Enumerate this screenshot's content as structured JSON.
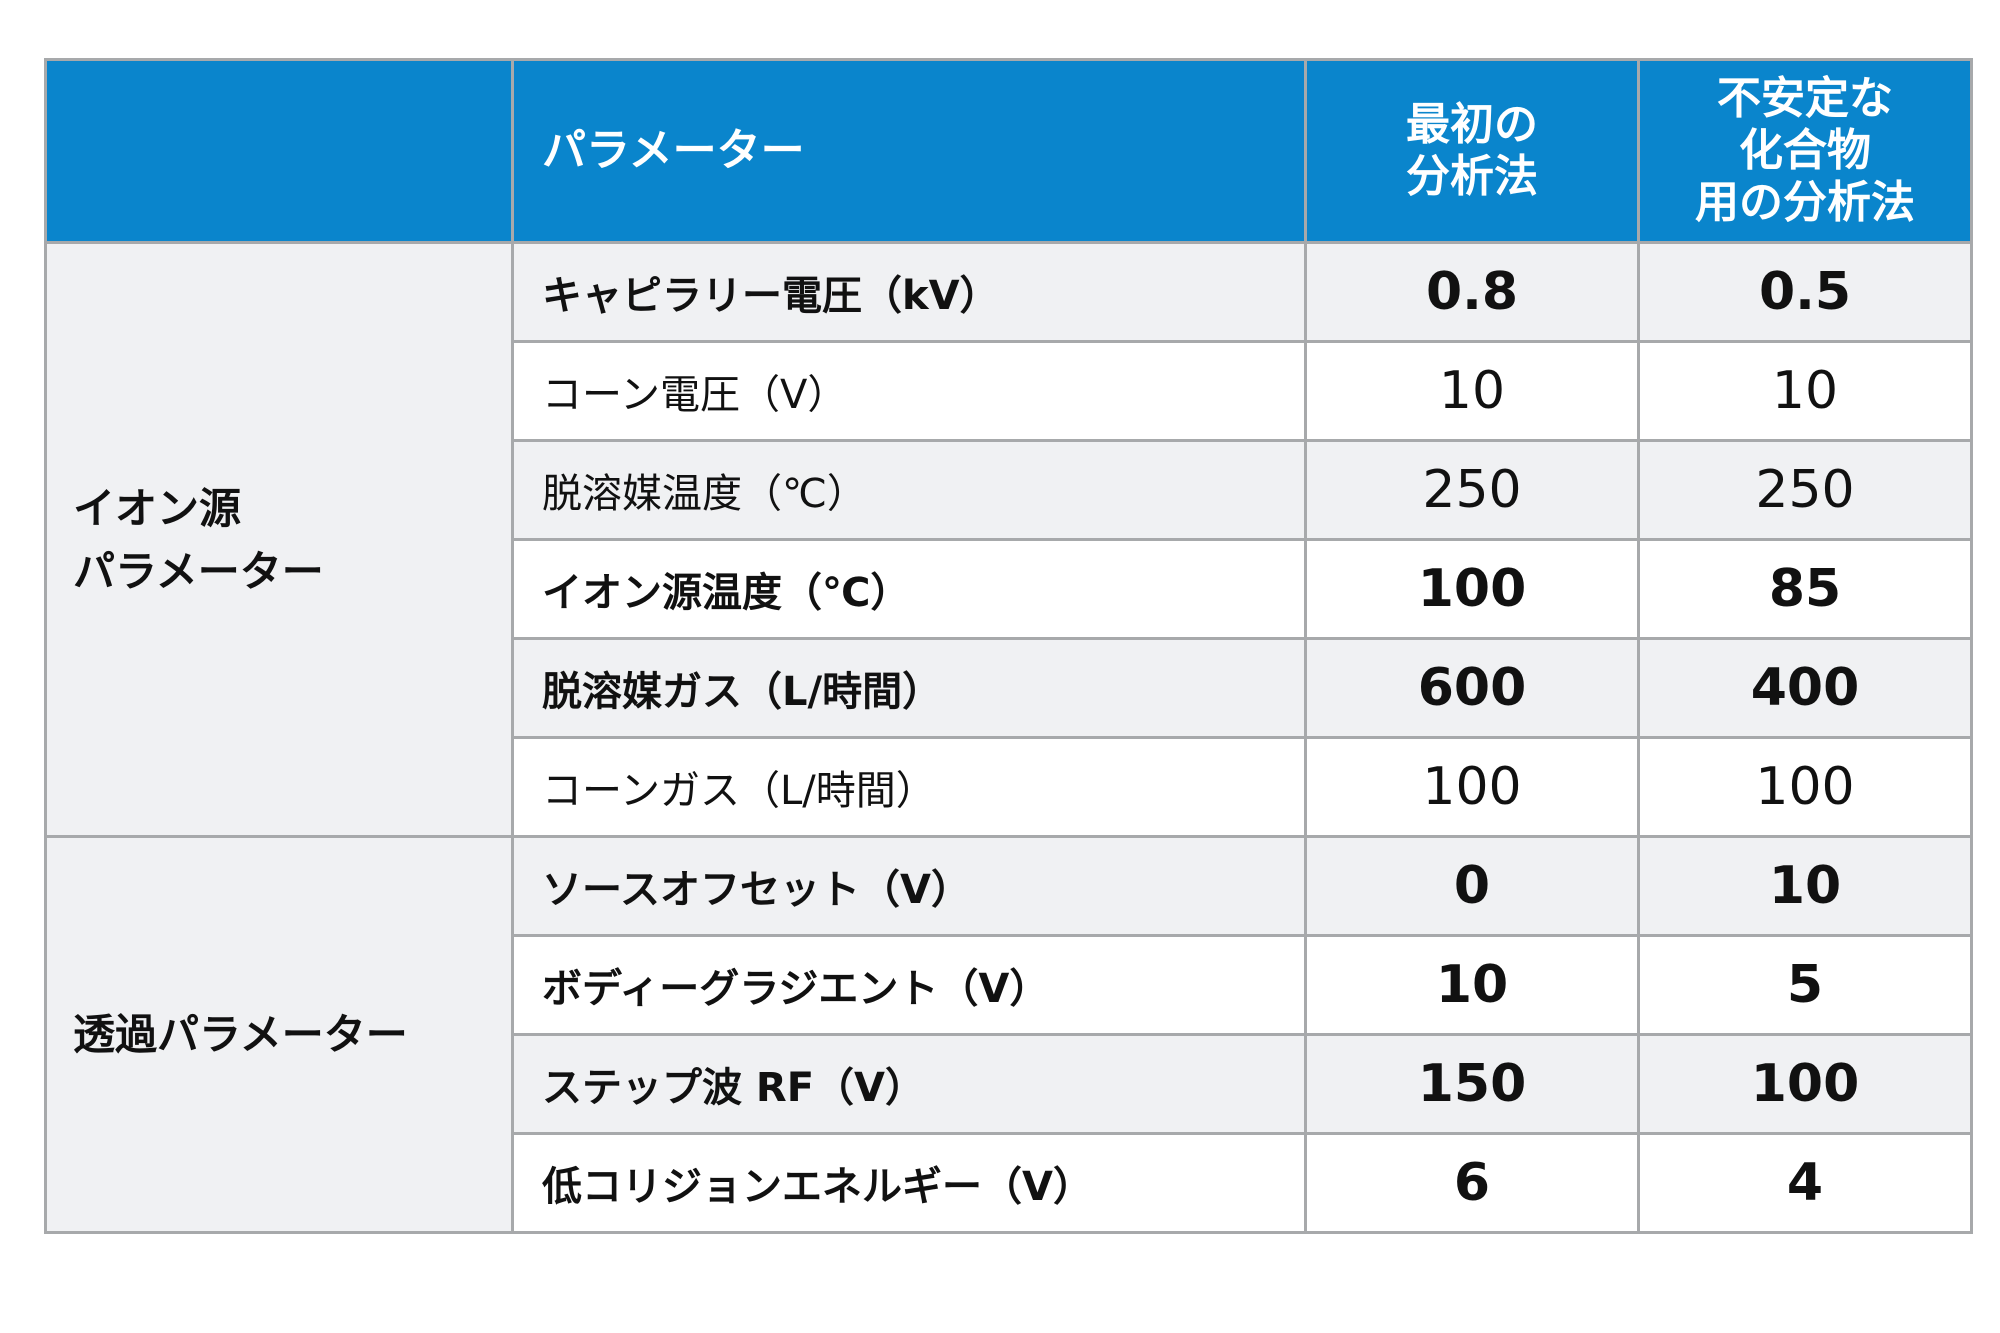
{
  "colors": {
    "header_bg": "#0a85cc",
    "header_text": "#ffffff",
    "shaded_row": "#f0f1f3",
    "border": "#a7a9ab"
  },
  "header": {
    "group": "",
    "parameter": "パラメーター",
    "col1_lines": [
      "最初の",
      "分析法"
    ],
    "col2_lines": [
      "不安定な",
      "化合物",
      "用の分析法"
    ]
  },
  "groups": [
    {
      "label": "イオン源\nパラメーター",
      "rows": [
        {
          "parameter": "キャピラリー電圧（kV）",
          "initial": "0.8",
          "labile": "0.5",
          "bold": true,
          "shaded": true
        },
        {
          "parameter": "コーン電圧（V）",
          "initial": "10",
          "labile": "10",
          "bold": false,
          "shaded": false
        },
        {
          "parameter": "脱溶媒温度（℃）",
          "initial": "250",
          "labile": "250",
          "bold": false,
          "shaded": true
        },
        {
          "parameter": "イオン源温度（℃）",
          "initial": "100",
          "labile": "85",
          "bold": true,
          "shaded": false
        },
        {
          "parameter": "脱溶媒ガス（L/時間）",
          "initial": "600",
          "labile": "400",
          "bold": true,
          "shaded": true
        },
        {
          "parameter": "コーンガス（L/時間）",
          "initial": "100",
          "labile": "100",
          "bold": false,
          "shaded": false
        }
      ]
    },
    {
      "label": "透過パラメーター",
      "rows": [
        {
          "parameter": "ソースオフセット（V）",
          "initial": "0",
          "labile": "10",
          "bold": true,
          "shaded": true
        },
        {
          "parameter": "ボディーグラジエント（V）",
          "initial": "10",
          "labile": "5",
          "bold": true,
          "shaded": false
        },
        {
          "parameter": "ステップ波 RF（V）",
          "initial": "150",
          "labile": "100",
          "bold": true,
          "shaded": true
        },
        {
          "parameter": "低コリジョンエネルギー（V）",
          "initial": "6",
          "labile": "4",
          "bold": true,
          "shaded": false
        }
      ]
    }
  ]
}
